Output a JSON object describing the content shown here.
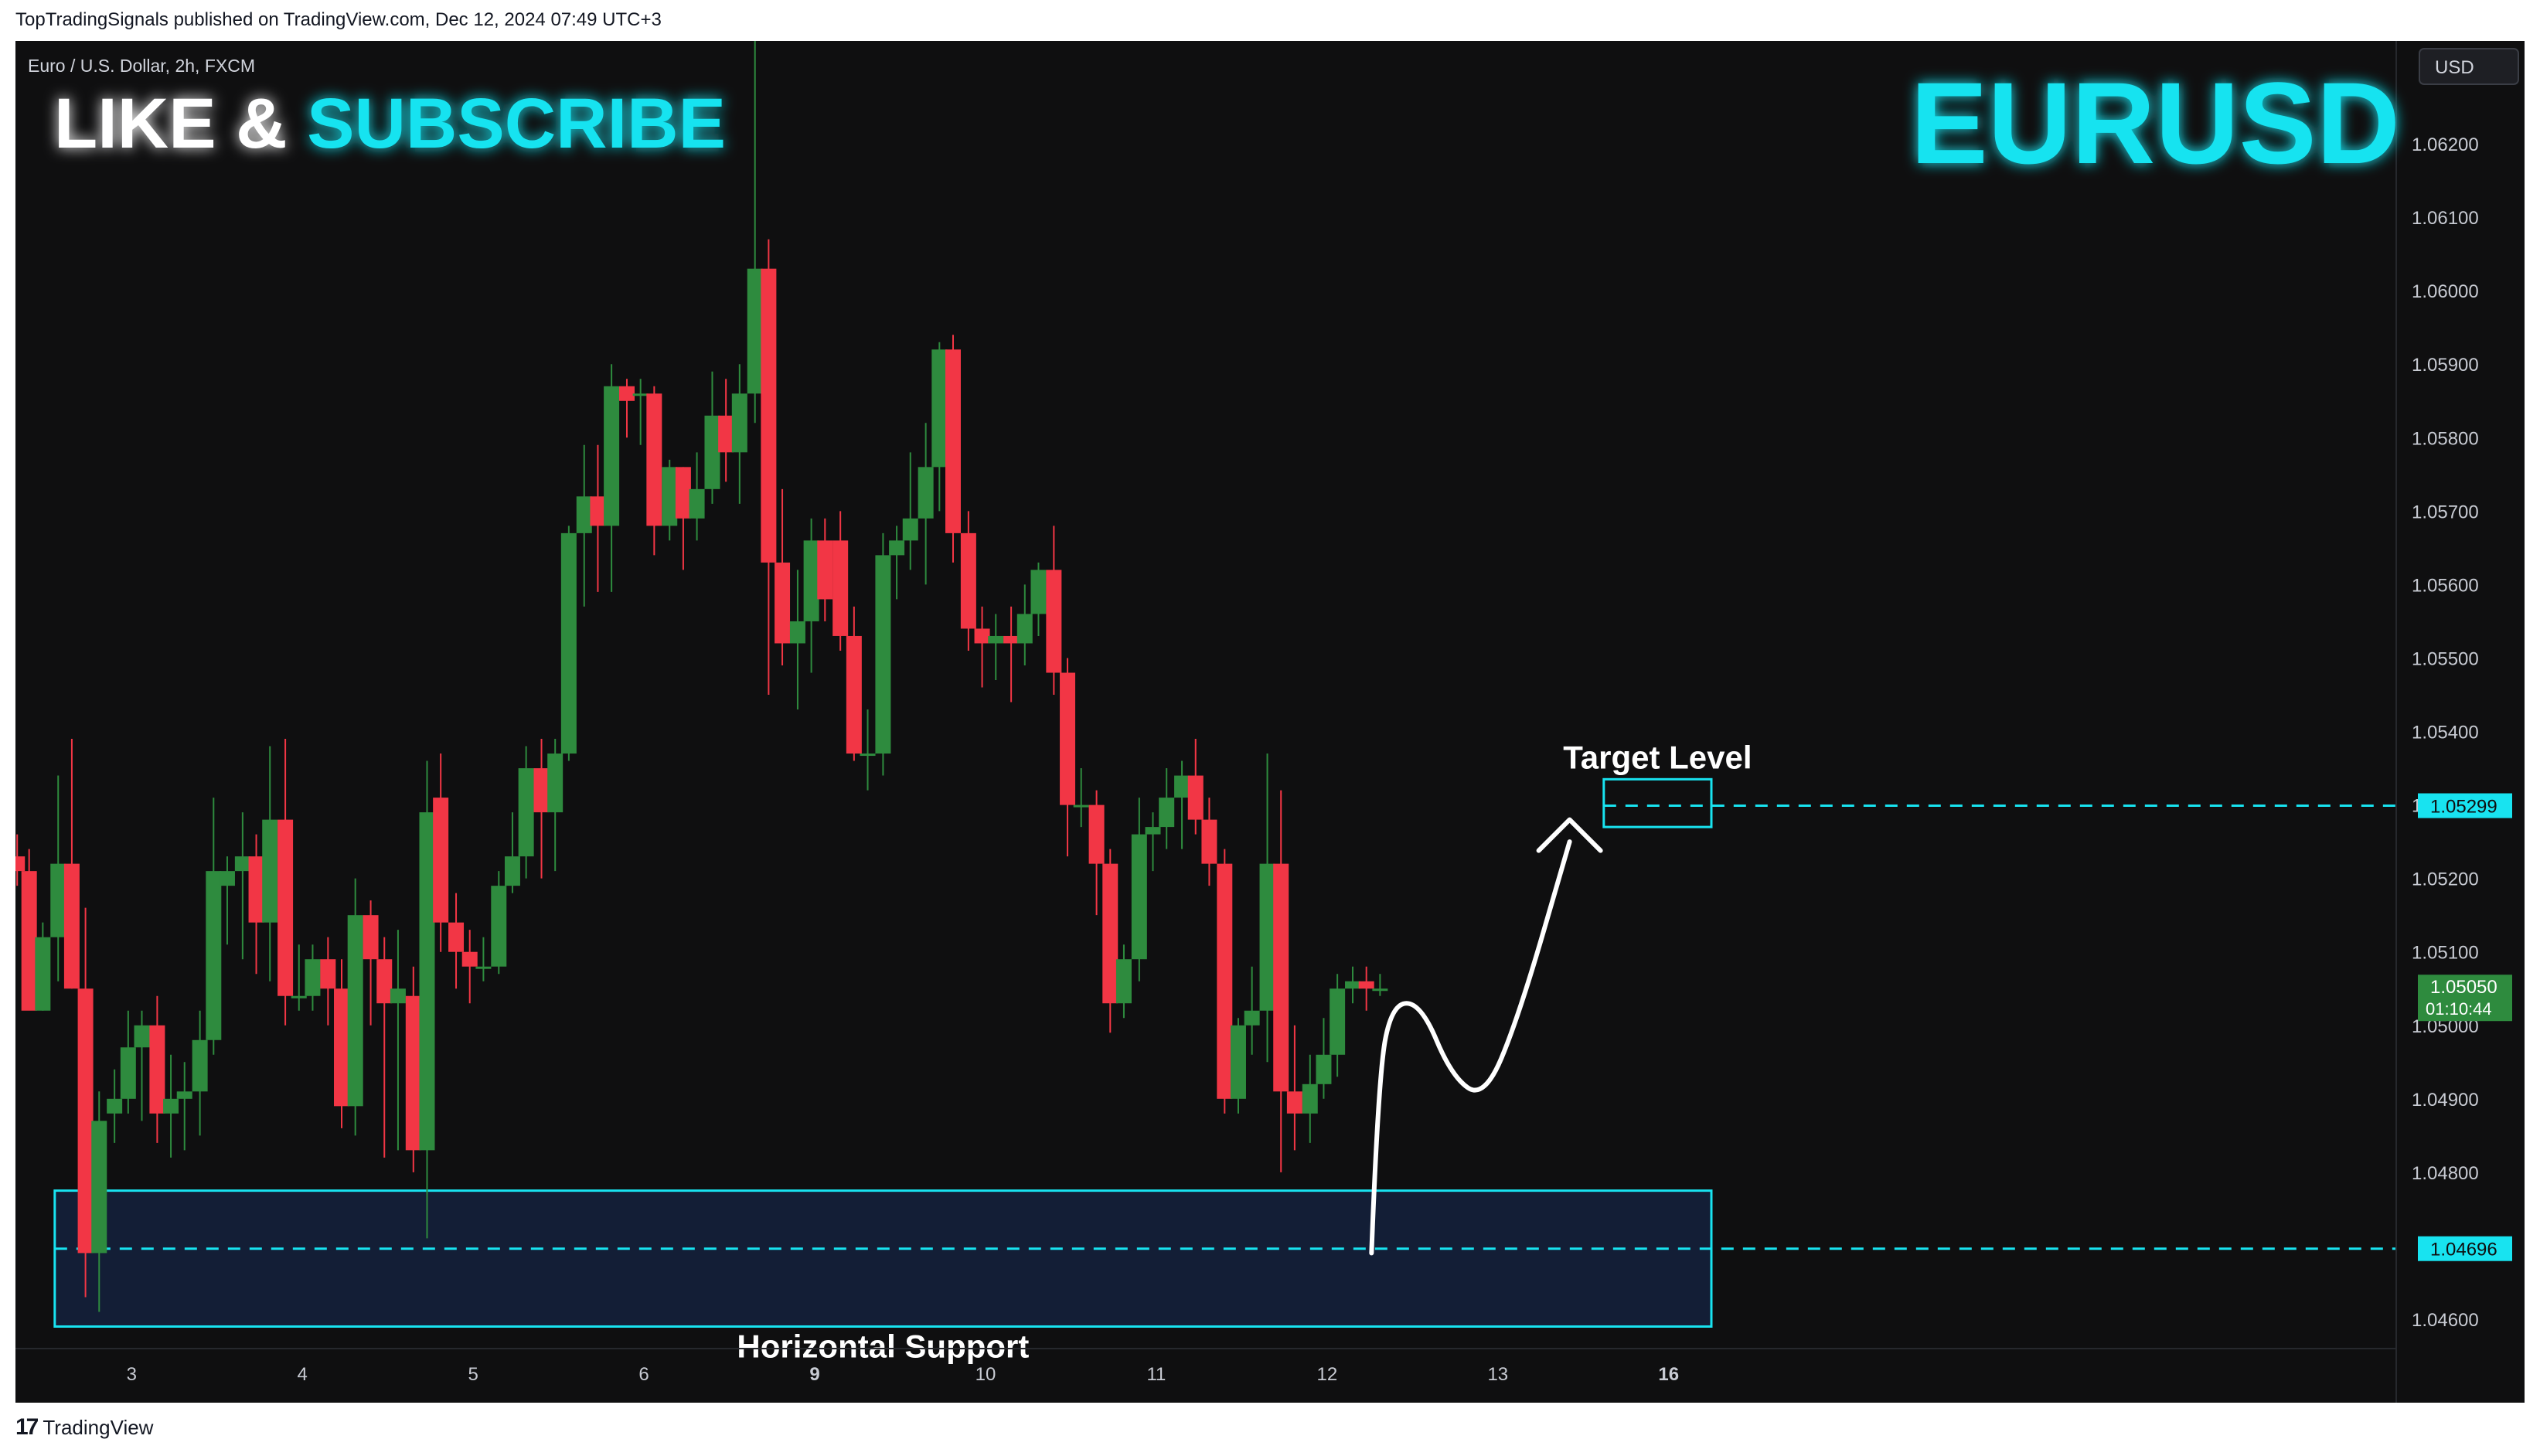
{
  "header": {
    "published_line": "TopTradingSignals published on TradingView.com, Dec 12, 2024 07:49 UTC+3"
  },
  "footer": {
    "logo_glyph": "17",
    "brand": "TradingView"
  },
  "chart_data": {
    "type": "candlestick",
    "symbol_line": "Euro / U.S. Dollar, 2h, FXCM",
    "title": "EURUSD",
    "banner": {
      "part1": "LIKE &",
      "part2": "SUBSCRIBE"
    },
    "currency_button": "USD",
    "colors": {
      "background": "#0f0f10",
      "up": "#2e8b3e",
      "down": "#f23645",
      "accent": "#18e3f0",
      "zone_fill": "#14213d"
    },
    "y_range": [
      1.0456,
      1.0634
    ],
    "y_ticks": [
      "1.06200",
      "1.06100",
      "1.06000",
      "1.05900",
      "1.05800",
      "1.05700",
      "1.05600",
      "1.05500",
      "1.05400",
      "1.05300",
      "1.05200",
      "1.05100",
      "1.05000",
      "1.04900",
      "1.04800",
      "1.04600"
    ],
    "x_range": [
      2.32,
      16.26
    ],
    "x_ticks": [
      {
        "label": "3",
        "x": 3,
        "bold": false
      },
      {
        "label": "4",
        "x": 4,
        "bold": false
      },
      {
        "label": "5",
        "x": 5,
        "bold": false
      },
      {
        "label": "6",
        "x": 6,
        "bold": false
      },
      {
        "label": "9",
        "x": 7,
        "bold": true
      },
      {
        "label": "10",
        "x": 8,
        "bold": false
      },
      {
        "label": "11",
        "x": 9,
        "bold": false
      },
      {
        "label": "12",
        "x": 10,
        "bold": false
      },
      {
        "label": "13",
        "x": 11,
        "bold": false
      },
      {
        "label": "16",
        "x": 12,
        "bold": true
      }
    ],
    "current_price": {
      "value": "1.05050",
      "countdown": "01:10:44",
      "level": 1.0505
    },
    "target": {
      "label": "Target Level",
      "value": "1.05299",
      "level": 1.05299,
      "zone": [
        1.0527,
        1.05335
      ],
      "x_range": [
        11.62,
        12.25
      ]
    },
    "support": {
      "label": "Horizontal Support",
      "value": "1.04696",
      "level": 1.04696,
      "zone": [
        1.0459,
        1.04775
      ],
      "x_range": [
        2.55,
        12.25
      ]
    },
    "projection_path": [
      [
        10.26,
        1.0469
      ],
      [
        10.3,
        1.0493
      ],
      [
        10.38,
        1.0503
      ],
      [
        10.55,
        1.0503
      ],
      [
        10.73,
        1.0493
      ],
      [
        10.92,
        1.049
      ],
      [
        11.12,
        1.0501
      ],
      [
        11.42,
        1.0525
      ]
    ],
    "candles": [
      {
        "t": 2.33,
        "o": 1.0523,
        "h": 1.0526,
        "l": 1.0519,
        "c": 1.0521
      },
      {
        "t": 2.4,
        "o": 1.0521,
        "h": 1.0524,
        "l": 1.0503,
        "c": 1.0502
      },
      {
        "t": 2.48,
        "o": 1.0502,
        "h": 1.0514,
        "l": 1.0502,
        "c": 1.0512
      },
      {
        "t": 2.57,
        "o": 1.0512,
        "h": 1.0534,
        "l": 1.0506,
        "c": 1.0522
      },
      {
        "t": 2.65,
        "o": 1.0522,
        "h": 1.0539,
        "l": 1.0505,
        "c": 1.0505
      },
      {
        "t": 2.73,
        "o": 1.0505,
        "h": 1.0516,
        "l": 1.0463,
        "c": 1.0469
      },
      {
        "t": 2.81,
        "o": 1.0469,
        "h": 1.0491,
        "l": 1.0461,
        "c": 1.0487
      },
      {
        "t": 2.9,
        "o": 1.0488,
        "h": 1.0494,
        "l": 1.0484,
        "c": 1.049
      },
      {
        "t": 2.98,
        "o": 1.049,
        "h": 1.0502,
        "l": 1.0488,
        "c": 1.0497
      },
      {
        "t": 3.06,
        "o": 1.0497,
        "h": 1.0502,
        "l": 1.0487,
        "c": 1.05
      },
      {
        "t": 3.15,
        "o": 1.05,
        "h": 1.0504,
        "l": 1.0484,
        "c": 1.0488
      },
      {
        "t": 3.23,
        "o": 1.0488,
        "h": 1.0496,
        "l": 1.0482,
        "c": 1.049
      },
      {
        "t": 3.31,
        "o": 1.049,
        "h": 1.0495,
        "l": 1.0483,
        "c": 1.0491
      },
      {
        "t": 3.4,
        "o": 1.0491,
        "h": 1.0502,
        "l": 1.0485,
        "c": 1.0498
      },
      {
        "t": 3.48,
        "o": 1.0498,
        "h": 1.0531,
        "l": 1.0496,
        "c": 1.0521
      },
      {
        "t": 3.56,
        "o": 1.0519,
        "h": 1.0523,
        "l": 1.0511,
        "c": 1.0521
      },
      {
        "t": 3.65,
        "o": 1.0521,
        "h": 1.0529,
        "l": 1.0509,
        "c": 1.0523
      },
      {
        "t": 3.73,
        "o": 1.0523,
        "h": 1.0526,
        "l": 1.0507,
        "c": 1.0514
      },
      {
        "t": 3.81,
        "o": 1.0514,
        "h": 1.0538,
        "l": 1.0506,
        "c": 1.0528
      },
      {
        "t": 3.9,
        "o": 1.0528,
        "h": 1.0539,
        "l": 1.05,
        "c": 1.0504
      },
      {
        "t": 3.98,
        "o": 1.0504,
        "h": 1.0511,
        "l": 1.0502,
        "c": 1.0504
      },
      {
        "t": 4.06,
        "o": 1.0504,
        "h": 1.0511,
        "l": 1.0502,
        "c": 1.0509
      },
      {
        "t": 4.15,
        "o": 1.0509,
        "h": 1.0512,
        "l": 1.05,
        "c": 1.0505
      },
      {
        "t": 4.23,
        "o": 1.0505,
        "h": 1.0509,
        "l": 1.0486,
        "c": 1.0489
      },
      {
        "t": 4.31,
        "o": 1.0489,
        "h": 1.052,
        "l": 1.0485,
        "c": 1.0515
      },
      {
        "t": 4.4,
        "o": 1.0515,
        "h": 1.0517,
        "l": 1.05,
        "c": 1.0509
      },
      {
        "t": 4.48,
        "o": 1.0509,
        "h": 1.0512,
        "l": 1.0482,
        "c": 1.0503
      },
      {
        "t": 4.56,
        "o": 1.0503,
        "h": 1.0513,
        "l": 1.0483,
        "c": 1.0505
      },
      {
        "t": 4.65,
        "o": 1.0504,
        "h": 1.0508,
        "l": 1.048,
        "c": 1.0483
      },
      {
        "t": 4.73,
        "o": 1.0483,
        "h": 1.0536,
        "l": 1.0471,
        "c": 1.0529
      },
      {
        "t": 4.81,
        "o": 1.0531,
        "h": 1.0537,
        "l": 1.051,
        "c": 1.0514
      },
      {
        "t": 4.9,
        "o": 1.0514,
        "h": 1.0518,
        "l": 1.0505,
        "c": 1.051
      },
      {
        "t": 4.98,
        "o": 1.051,
        "h": 1.0513,
        "l": 1.0503,
        "c": 1.0508
      },
      {
        "t": 5.06,
        "o": 1.0508,
        "h": 1.0512,
        "l": 1.0506,
        "c": 1.0508
      },
      {
        "t": 5.15,
        "o": 1.0508,
        "h": 1.0521,
        "l": 1.0507,
        "c": 1.0519
      },
      {
        "t": 5.23,
        "o": 1.0519,
        "h": 1.0529,
        "l": 1.0518,
        "c": 1.0523
      },
      {
        "t": 5.31,
        "o": 1.0523,
        "h": 1.0538,
        "l": 1.052,
        "c": 1.0535
      },
      {
        "t": 5.4,
        "o": 1.0535,
        "h": 1.0539,
        "l": 1.052,
        "c": 1.0529
      },
      {
        "t": 5.48,
        "o": 1.0529,
        "h": 1.0539,
        "l": 1.0521,
        "c": 1.0537
      },
      {
        "t": 5.56,
        "o": 1.0537,
        "h": 1.0568,
        "l": 1.0536,
        "c": 1.0567
      },
      {
        "t": 5.65,
        "o": 1.0567,
        "h": 1.0579,
        "l": 1.0557,
        "c": 1.0572
      },
      {
        "t": 5.73,
        "o": 1.0572,
        "h": 1.0579,
        "l": 1.0559,
        "c": 1.0568
      },
      {
        "t": 5.81,
        "o": 1.0568,
        "h": 1.059,
        "l": 1.0559,
        "c": 1.0587
      },
      {
        "t": 5.9,
        "o": 1.0587,
        "h": 1.0588,
        "l": 1.058,
        "c": 1.0585
      },
      {
        "t": 5.98,
        "o": 1.0586,
        "h": 1.0588,
        "l": 1.0579,
        "c": 1.0586
      },
      {
        "t": 6.06,
        "o": 1.0586,
        "h": 1.0587,
        "l": 1.0564,
        "c": 1.0568
      },
      {
        "t": 6.15,
        "o": 1.0568,
        "h": 1.0577,
        "l": 1.0566,
        "c": 1.0576
      },
      {
        "t": 6.23,
        "o": 1.0576,
        "h": 1.0576,
        "l": 1.0562,
        "c": 1.0569
      },
      {
        "t": 6.31,
        "o": 1.0569,
        "h": 1.0578,
        "l": 1.0566,
        "c": 1.0573
      },
      {
        "t": 6.4,
        "o": 1.0573,
        "h": 1.0589,
        "l": 1.0571,
        "c": 1.0583
      },
      {
        "t": 6.48,
        "o": 1.0583,
        "h": 1.0588,
        "l": 1.0574,
        "c": 1.0578
      },
      {
        "t": 6.56,
        "o": 1.0578,
        "h": 1.059,
        "l": 1.0571,
        "c": 1.0586
      },
      {
        "t": 6.65,
        "o": 1.0586,
        "h": 1.0634,
        "l": 1.0582,
        "c": 1.0603
      },
      {
        "t": 6.73,
        "o": 1.0603,
        "h": 1.0607,
        "l": 1.0545,
        "c": 1.0563
      },
      {
        "t": 6.81,
        "o": 1.0563,
        "h": 1.0573,
        "l": 1.0549,
        "c": 1.0552
      },
      {
        "t": 6.9,
        "o": 1.0552,
        "h": 1.0562,
        "l": 1.0543,
        "c": 1.0555
      },
      {
        "t": 6.98,
        "o": 1.0555,
        "h": 1.0569,
        "l": 1.0548,
        "c": 1.0566
      },
      {
        "t": 7.06,
        "o": 1.0566,
        "h": 1.0569,
        "l": 1.0555,
        "c": 1.0558
      },
      {
        "t": 7.15,
        "o": 1.0566,
        "h": 1.057,
        "l": 1.0551,
        "c": 1.0553
      },
      {
        "t": 7.23,
        "o": 1.0553,
        "h": 1.0557,
        "l": 1.0536,
        "c": 1.0537
      },
      {
        "t": 7.31,
        "o": 1.0537,
        "h": 1.0543,
        "l": 1.0532,
        "c": 1.0537
      },
      {
        "t": 7.4,
        "o": 1.0537,
        "h": 1.0567,
        "l": 1.0534,
        "c": 1.0564
      },
      {
        "t": 7.48,
        "o": 1.0564,
        "h": 1.0568,
        "l": 1.0558,
        "c": 1.0566
      },
      {
        "t": 7.56,
        "o": 1.0566,
        "h": 1.0578,
        "l": 1.0562,
        "c": 1.0569
      },
      {
        "t": 7.65,
        "o": 1.0569,
        "h": 1.0582,
        "l": 1.056,
        "c": 1.0576
      },
      {
        "t": 7.73,
        "o": 1.0576,
        "h": 1.0593,
        "l": 1.057,
        "c": 1.0592
      },
      {
        "t": 7.81,
        "o": 1.0592,
        "h": 1.0594,
        "l": 1.0563,
        "c": 1.0567
      },
      {
        "t": 7.9,
        "o": 1.0567,
        "h": 1.057,
        "l": 1.0551,
        "c": 1.0554
      },
      {
        "t": 7.98,
        "o": 1.0554,
        "h": 1.0557,
        "l": 1.0546,
        "c": 1.0552
      },
      {
        "t": 8.06,
        "o": 1.0552,
        "h": 1.0556,
        "l": 1.0547,
        "c": 1.0553
      },
      {
        "t": 8.15,
        "o": 1.0553,
        "h": 1.0557,
        "l": 1.0544,
        "c": 1.0552
      },
      {
        "t": 8.23,
        "o": 1.0552,
        "h": 1.056,
        "l": 1.0549,
        "c": 1.0556
      },
      {
        "t": 8.31,
        "o": 1.0556,
        "h": 1.0563,
        "l": 1.0553,
        "c": 1.0562
      },
      {
        "t": 8.4,
        "o": 1.0562,
        "h": 1.0568,
        "l": 1.0545,
        "c": 1.0548
      },
      {
        "t": 8.48,
        "o": 1.0548,
        "h": 1.055,
        "l": 1.0523,
        "c": 1.053
      },
      {
        "t": 8.56,
        "o": 1.053,
        "h": 1.0535,
        "l": 1.0527,
        "c": 1.053
      },
      {
        "t": 8.65,
        "o": 1.053,
        "h": 1.0532,
        "l": 1.0515,
        "c": 1.0522
      },
      {
        "t": 8.73,
        "o": 1.0522,
        "h": 1.0524,
        "l": 1.0499,
        "c": 1.0503
      },
      {
        "t": 8.81,
        "o": 1.0503,
        "h": 1.0511,
        "l": 1.0501,
        "c": 1.0509
      },
      {
        "t": 8.9,
        "o": 1.0509,
        "h": 1.0531,
        "l": 1.0506,
        "c": 1.0526
      },
      {
        "t": 8.98,
        "o": 1.0526,
        "h": 1.0529,
        "l": 1.0521,
        "c": 1.0527
      },
      {
        "t": 9.06,
        "o": 1.0527,
        "h": 1.0535,
        "l": 1.0524,
        "c": 1.0531
      },
      {
        "t": 9.15,
        "o": 1.0531,
        "h": 1.0536,
        "l": 1.0524,
        "c": 1.0534
      },
      {
        "t": 9.23,
        "o": 1.0534,
        "h": 1.0539,
        "l": 1.0526,
        "c": 1.0528
      },
      {
        "t": 9.31,
        "o": 1.0528,
        "h": 1.0531,
        "l": 1.0519,
        "c": 1.0522
      },
      {
        "t": 9.4,
        "o": 1.0522,
        "h": 1.0524,
        "l": 1.0488,
        "c": 1.049
      },
      {
        "t": 9.48,
        "o": 1.049,
        "h": 1.0501,
        "l": 1.0488,
        "c": 1.05
      },
      {
        "t": 9.56,
        "o": 1.05,
        "h": 1.0508,
        "l": 1.0496,
        "c": 1.0502
      },
      {
        "t": 9.65,
        "o": 1.0502,
        "h": 1.0537,
        "l": 1.0495,
        "c": 1.0522
      },
      {
        "t": 9.73,
        "o": 1.0522,
        "h": 1.0532,
        "l": 1.048,
        "c": 1.0491
      },
      {
        "t": 9.81,
        "o": 1.0491,
        "h": 1.05,
        "l": 1.0483,
        "c": 1.0488
      },
      {
        "t": 9.9,
        "o": 1.0488,
        "h": 1.0496,
        "l": 1.0484,
        "c": 1.0492
      },
      {
        "t": 9.98,
        "o": 1.0492,
        "h": 1.0501,
        "l": 1.049,
        "c": 1.0496
      },
      {
        "t": 10.06,
        "o": 1.0496,
        "h": 1.0507,
        "l": 1.0493,
        "c": 1.0505
      },
      {
        "t": 10.15,
        "o": 1.0505,
        "h": 1.0508,
        "l": 1.0503,
        "c": 1.0506
      },
      {
        "t": 10.23,
        "o": 1.0506,
        "h": 1.0508,
        "l": 1.0502,
        "c": 1.0505
      },
      {
        "t": 10.31,
        "o": 1.0505,
        "h": 1.0507,
        "l": 1.0504,
        "c": 1.0505
      }
    ]
  }
}
